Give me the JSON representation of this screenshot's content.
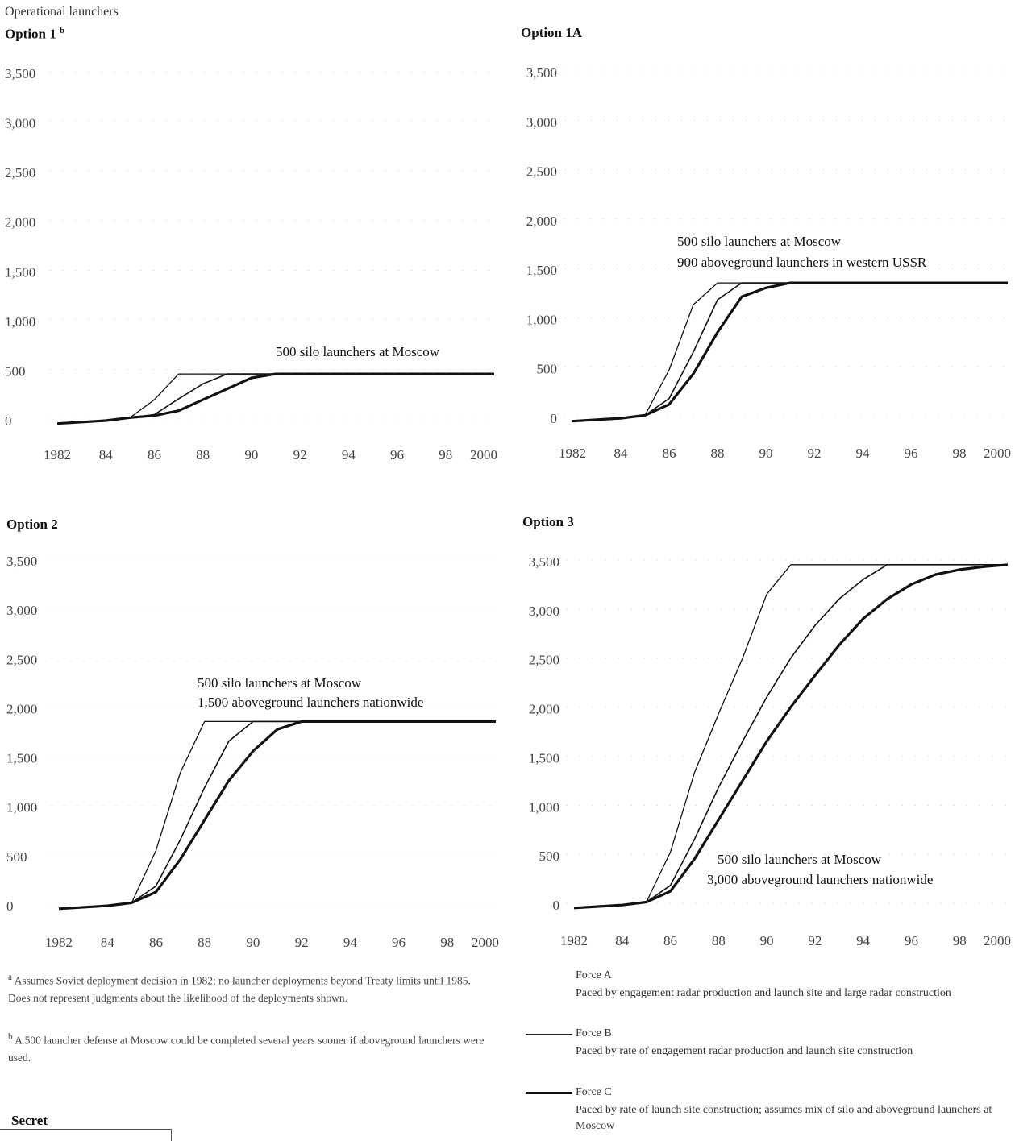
{
  "header": {
    "y_axis_label": "Operational launchers"
  },
  "charts": [
    {
      "title": "Option 1",
      "title_sup": "b",
      "annotation": [
        "500 silo launchers at Moscow"
      ]
    },
    {
      "title": "Option 1A",
      "title_sup": "",
      "annotation": [
        "500 silo launchers at Moscow",
        "900 aboveground launchers in western USSR"
      ]
    },
    {
      "title": "Option 2",
      "title_sup": "",
      "annotation": [
        "500 silo launchers at Moscow",
        "1,500 aboveground launchers nationwide"
      ]
    },
    {
      "title": "Option 3",
      "title_sup": "",
      "annotation": [
        "500 silo launchers at Moscow",
        "3,000 aboveground launchers nationwide"
      ]
    }
  ],
  "chart_data": [
    {
      "type": "line",
      "title": "Option 1",
      "x_ticks": [
        "1982",
        "84",
        "86",
        "88",
        "90",
        "92",
        "94",
        "96",
        "98",
        "2000"
      ],
      "y_ticks": [
        "0",
        "500",
        "1,000",
        "1,500",
        "2,000",
        "2,500",
        "3,000",
        "3,500"
      ],
      "xlim": [
        1982,
        2000
      ],
      "ylim": [
        0,
        3500
      ],
      "series": [
        {
          "name": "Force A",
          "x": [
            1982,
            1984,
            1985,
            1986,
            1987,
            2000
          ],
          "y": [
            100,
            130,
            160,
            340,
            600,
            600
          ]
        },
        {
          "name": "Force B",
          "x": [
            1982,
            1984,
            1985,
            1986,
            1987,
            1988,
            1989,
            2000
          ],
          "y": [
            100,
            130,
            160,
            190,
            350,
            500,
            600,
            600
          ]
        },
        {
          "name": "Force C",
          "x": [
            1982,
            1984,
            1985,
            1986,
            1987,
            1988,
            1989,
            1990,
            1991,
            2000
          ],
          "y": [
            100,
            130,
            160,
            180,
            230,
            340,
            450,
            560,
            600,
            600
          ]
        }
      ]
    },
    {
      "type": "line",
      "title": "Option 1A",
      "x_ticks": [
        "1982",
        "84",
        "86",
        "88",
        "90",
        "92",
        "94",
        "96",
        "98",
        "2000"
      ],
      "y_ticks": [
        "0",
        "500",
        "1,000",
        "1,500",
        "2,000",
        "2,500",
        "3,000",
        "3,500"
      ],
      "xlim": [
        1982,
        2000
      ],
      "ylim": [
        0,
        3500
      ],
      "series": [
        {
          "name": "Force A",
          "x": [
            1982,
            1984,
            1985,
            1986,
            1987,
            1988,
            2000
          ],
          "y": [
            100,
            130,
            160,
            620,
            1280,
            1500,
            1500
          ]
        },
        {
          "name": "Force B",
          "x": [
            1982,
            1984,
            1985,
            1986,
            1987,
            1988,
            1989,
            2000
          ],
          "y": [
            100,
            130,
            160,
            330,
            800,
            1330,
            1500,
            1500
          ]
        },
        {
          "name": "Force C",
          "x": [
            1982,
            1984,
            1985,
            1986,
            1987,
            1988,
            1989,
            1990,
            1991,
            2000
          ],
          "y": [
            100,
            130,
            160,
            270,
            580,
            1000,
            1360,
            1450,
            1500,
            1500
          ]
        }
      ]
    },
    {
      "type": "line",
      "title": "Option 2",
      "x_ticks": [
        "1982",
        "84",
        "86",
        "88",
        "90",
        "92",
        "94",
        "96",
        "98",
        "2000"
      ],
      "y_ticks": [
        "0",
        "500",
        "1,000",
        "1,500",
        "2,000",
        "2,500",
        "3,000",
        "3,500"
      ],
      "xlim": [
        1982,
        2000
      ],
      "ylim": [
        0,
        3500
      ],
      "series": [
        {
          "name": "Force A",
          "x": [
            1982,
            1984,
            1985,
            1986,
            1987,
            1988,
            2000
          ],
          "y": [
            100,
            130,
            160,
            690,
            1480,
            2000,
            2000
          ]
        },
        {
          "name": "Force B",
          "x": [
            1982,
            1984,
            1985,
            1986,
            1987,
            1988,
            1989,
            1990,
            2000
          ],
          "y": [
            100,
            130,
            160,
            330,
            800,
            1330,
            1800,
            2000,
            2000
          ]
        },
        {
          "name": "Force C",
          "x": [
            1982,
            1984,
            1985,
            1986,
            1987,
            1988,
            1989,
            1990,
            1991,
            1992,
            2000
          ],
          "y": [
            100,
            130,
            160,
            270,
            600,
            1000,
            1400,
            1700,
            1920,
            2000,
            2000
          ]
        }
      ]
    },
    {
      "type": "line",
      "title": "Option 3",
      "x_ticks": [
        "1982",
        "84",
        "86",
        "88",
        "90",
        "92",
        "94",
        "96",
        "98",
        "2000"
      ],
      "y_ticks": [
        "0",
        "500",
        "1,000",
        "1,500",
        "2,000",
        "2,500",
        "3,000",
        "3,500"
      ],
      "xlim": [
        1982,
        2000
      ],
      "ylim": [
        0,
        3500
      ],
      "series": [
        {
          "name": "Force A",
          "x": [
            1982,
            1984,
            1985,
            1986,
            1987,
            1988,
            1989,
            1990,
            1991,
            2000
          ],
          "y": [
            100,
            130,
            160,
            670,
            1480,
            2080,
            2650,
            3300,
            3600,
            3600
          ]
        },
        {
          "name": "Force B",
          "x": [
            1982,
            1984,
            1985,
            1986,
            1987,
            1988,
            1989,
            1990,
            1991,
            1992,
            1993,
            1994,
            1995,
            2000
          ],
          "y": [
            100,
            130,
            160,
            330,
            800,
            1330,
            1800,
            2250,
            2650,
            2980,
            3250,
            3450,
            3600,
            3600
          ]
        },
        {
          "name": "Force C",
          "x": [
            1982,
            1984,
            1985,
            1986,
            1987,
            1988,
            1989,
            1990,
            1991,
            1992,
            1993,
            1994,
            1995,
            1996,
            1997,
            1998,
            1999,
            2000
          ],
          "y": [
            100,
            130,
            160,
            270,
            600,
            1000,
            1400,
            1800,
            2150,
            2470,
            2780,
            3050,
            3250,
            3400,
            3500,
            3550,
            3580,
            3600
          ]
        }
      ]
    }
  ],
  "footnotes": [
    {
      "marker": "a",
      "text": "Assumes Soviet deployment decision in 1982; no launcher deployments beyond Treaty limits until 1985. Does not represent judgments about the likelihood of the deployments shown."
    },
    {
      "marker": "b",
      "text": "A 500 launcher defense at Moscow could be completed several years sooner if aboveground launchers were used."
    }
  ],
  "legend": [
    {
      "name": "Force A",
      "desc": "Paced by engagement radar production and launch site and large radar construction",
      "stroke": 0
    },
    {
      "name": "Force B",
      "desc": "Paced by rate of engagement radar production and launch site construction",
      "stroke": 1.2
    },
    {
      "name": "Force C",
      "desc": "Paced by rate of launch site construction; assumes mix of silo and aboveground launchers at Moscow",
      "stroke": 3
    }
  ],
  "classification": "Secret"
}
